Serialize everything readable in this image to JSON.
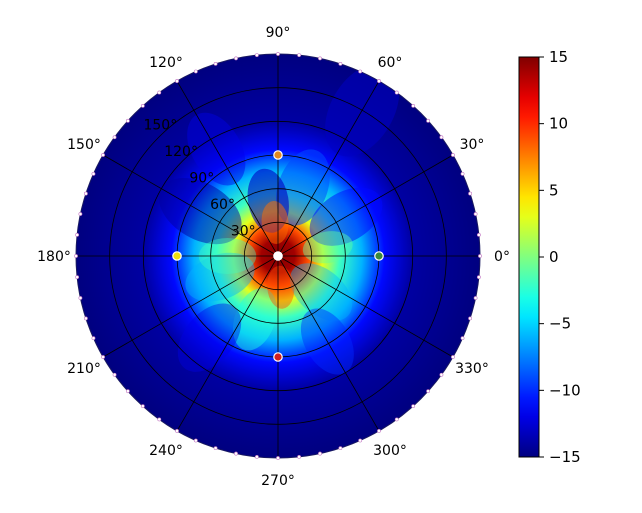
{
  "chart_data": {
    "type": "heatmap",
    "projection": "polar",
    "title": "",
    "angular_ticks": [
      "0°",
      "30°",
      "60°",
      "90°",
      "120°",
      "150°",
      "180°",
      "210°",
      "240°",
      "270°",
      "300°",
      "330°"
    ],
    "angular_tick_values_deg": [
      0,
      30,
      60,
      90,
      120,
      150,
      180,
      210,
      240,
      270,
      300,
      330
    ],
    "radial_ticks": [
      "30°",
      "60°",
      "90°",
      "120°",
      "150°"
    ],
    "radial_tick_values": [
      30,
      60,
      90,
      120,
      150
    ],
    "rlim": [
      0,
      180
    ],
    "grid": true,
    "colormap": "jet",
    "colorbar": {
      "range": [
        -15,
        15
      ],
      "ticks": [
        "15",
        "10",
        "5",
        "0",
        "−5",
        "−10",
        "−15"
      ],
      "tick_values": [
        15,
        10,
        5,
        0,
        -5,
        -10,
        -15
      ],
      "placement": "right"
    },
    "field_profile": [
      {
        "r": 0,
        "value": 15
      },
      {
        "r": 15,
        "value": 14
      },
      {
        "r": 27,
        "value": 9
      },
      {
        "r": 40,
        "value": 3
      },
      {
        "r": 55,
        "value": -2
      },
      {
        "r": 75,
        "value": -6
      },
      {
        "r": 95,
        "value": -11
      },
      {
        "r": 120,
        "value": -14
      },
      {
        "r": 180,
        "value": -15
      }
    ],
    "markers": [
      {
        "theta": 0,
        "r": 90,
        "color": "#3a8a3a"
      },
      {
        "theta": 90,
        "r": 90,
        "color": "#e08a20"
      },
      {
        "theta": 180,
        "r": 90,
        "color": "#f0e010"
      },
      {
        "theta": 270,
        "r": 90,
        "color": "#d02020"
      },
      {
        "theta": 0,
        "r": 0,
        "color": "#ffffff"
      }
    ]
  }
}
